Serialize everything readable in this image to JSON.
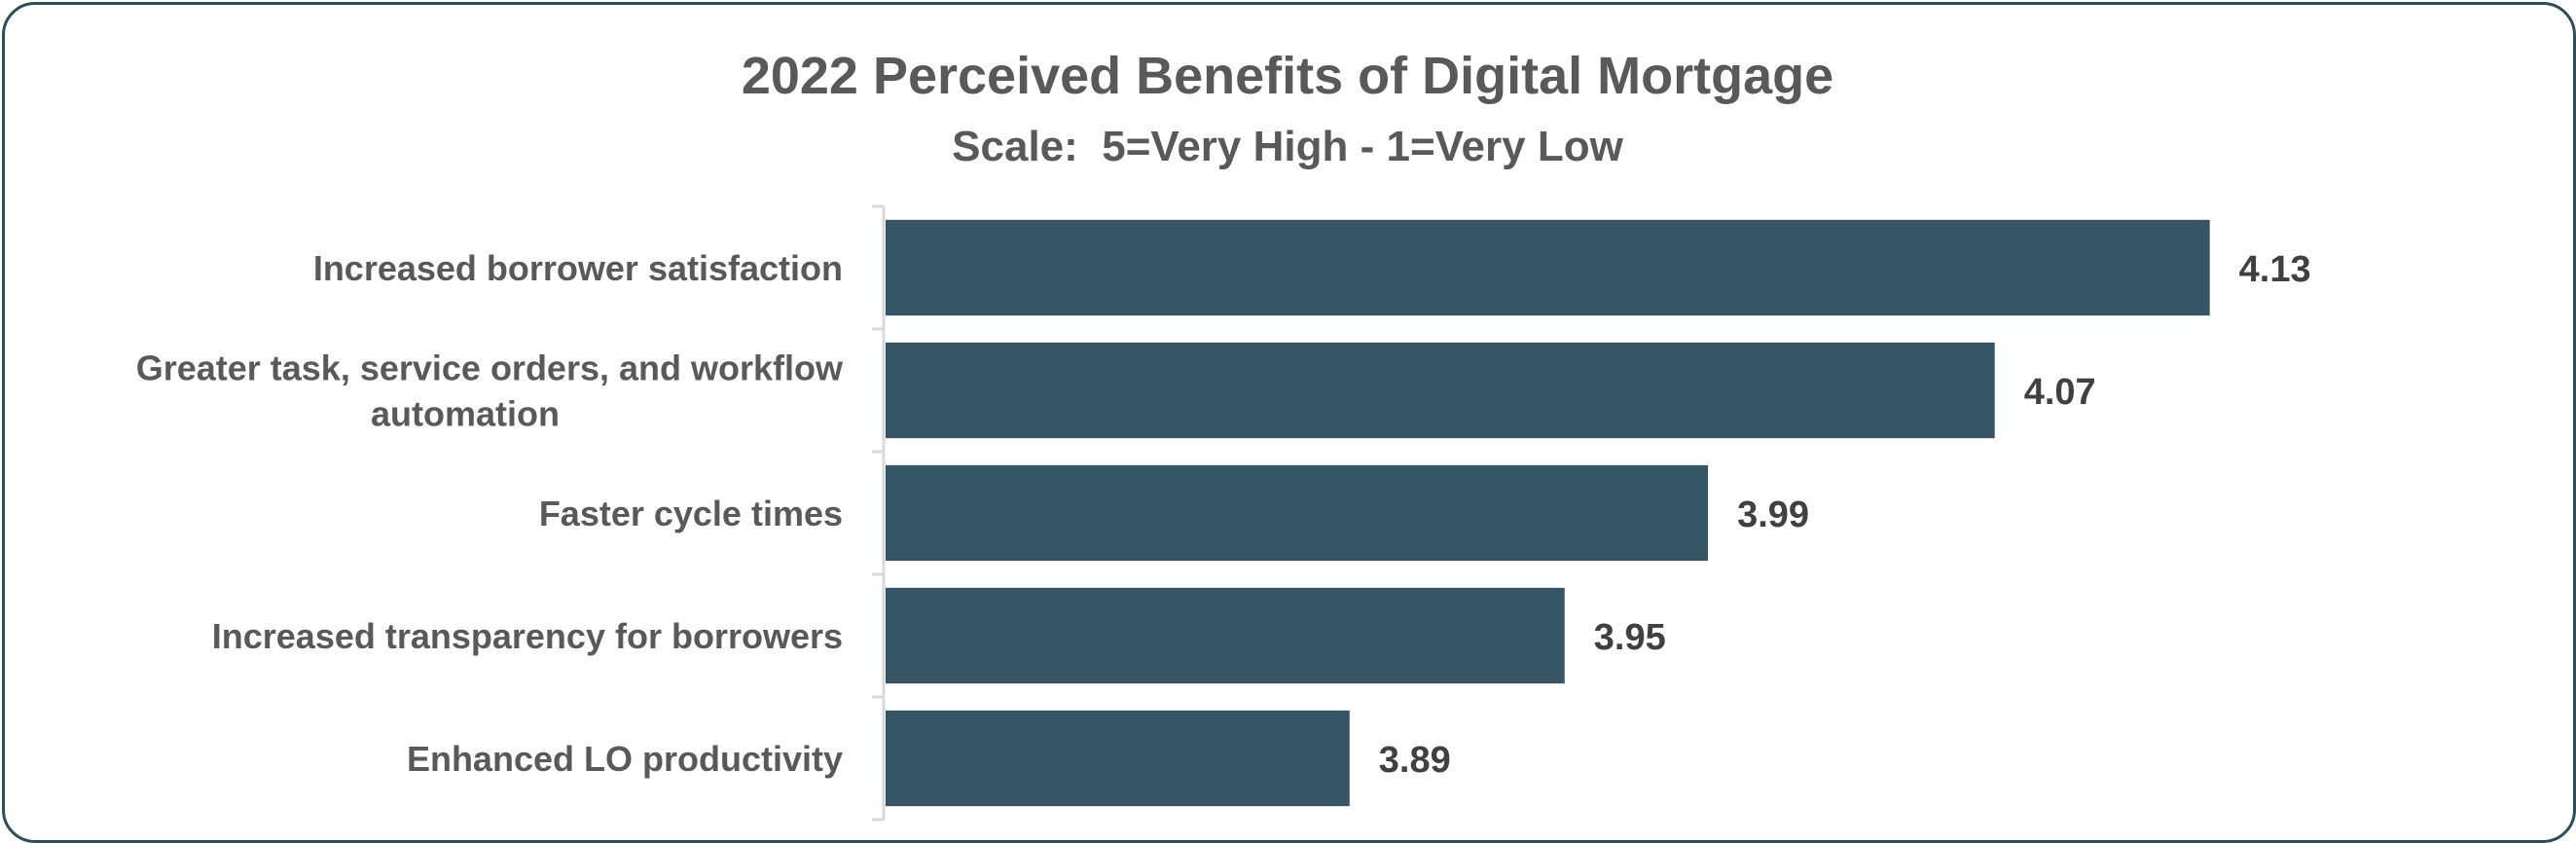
{
  "chart_data": {
    "type": "bar",
    "orientation": "horizontal",
    "title": "2022 Perceived Benefits of Digital Mortgage",
    "subtitle": "Scale:  5=Very High - 1=Very Low",
    "categories": [
      [
        "Increased borrower satisfaction"
      ],
      [
        "Greater task, service orders, and workflow",
        "automation"
      ],
      [
        "Faster cycle times"
      ],
      [
        "Increased transparency for borrowers"
      ],
      [
        "Enhanced LO productivity"
      ]
    ],
    "values": [
      4.13,
      4.07,
      3.99,
      3.95,
      3.89
    ],
    "value_labels": [
      "4.13",
      "4.07",
      "3.99",
      "3.95",
      "3.89"
    ],
    "xlim": [
      3.76,
      4.17
    ],
    "grid": false,
    "legend": "none",
    "colors": {
      "bar": "#375665",
      "text": "#595959",
      "value_text": "#404040",
      "axis": "#d9d9d9",
      "border": "#2e4d5b"
    }
  }
}
